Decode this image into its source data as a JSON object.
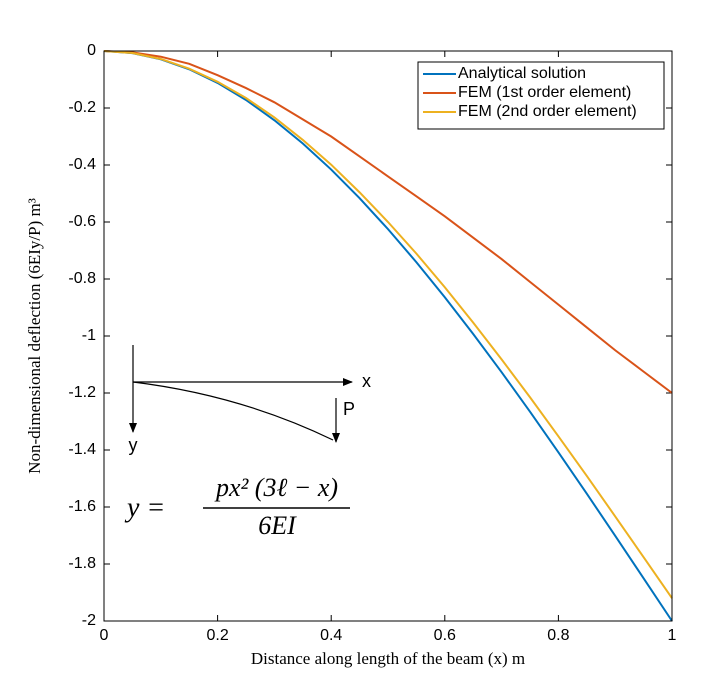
{
  "chart_data": {
    "type": "line",
    "xlabel": "Distance along length of the beam (x)  m",
    "ylabel": "Non-dimensional deflection (6EIy/P)  m³",
    "x": [
      0,
      0.05,
      0.1,
      0.15,
      0.2,
      0.25,
      0.3,
      0.35,
      0.4,
      0.45,
      0.5,
      0.55,
      0.6,
      0.65,
      0.7,
      0.75,
      0.8,
      0.85,
      0.9,
      0.95,
      1
    ],
    "series": [
      {
        "name": "Analytical solution",
        "color": "#0072bd",
        "values": [
          0,
          -0.0074,
          -0.029,
          -0.0641,
          -0.112,
          -0.1719,
          -0.243,
          -0.3246,
          -0.416,
          -0.5164,
          -0.625,
          -0.7411,
          -0.864,
          -0.9929,
          -1.127,
          -1.2656,
          -1.408,
          -1.5534,
          -1.701,
          -1.8501,
          -2
        ]
      },
      {
        "name": "FEM (1st order element)",
        "color": "#d95319",
        "values": [
          0,
          -0.005,
          -0.02,
          -0.045,
          -0.085,
          -0.13,
          -0.18,
          -0.24,
          -0.3,
          -0.37,
          -0.44,
          -0.51,
          -0.58,
          -0.655,
          -0.73,
          -0.81,
          -0.89,
          -0.97,
          -1.05,
          -1.125,
          -1.2
        ]
      },
      {
        "name": "FEM (2nd order element)",
        "color": "#edb120",
        "values": [
          0,
          -0.007,
          -0.028,
          -0.062,
          -0.108,
          -0.165,
          -0.233,
          -0.312,
          -0.399,
          -0.496,
          -0.6,
          -0.711,
          -0.829,
          -0.953,
          -1.082,
          -1.215,
          -1.352,
          -1.491,
          -1.633,
          -1.776,
          -1.92
        ]
      }
    ],
    "xlim": [
      0,
      1
    ],
    "ylim": [
      -2,
      0
    ],
    "xticks": [
      0,
      0.2,
      0.4,
      0.6,
      0.8,
      1
    ],
    "yticks": [
      -2,
      -1.8,
      -1.6,
      -1.4,
      -1.2,
      -1,
      -0.8,
      -0.6,
      -0.4,
      -0.2,
      0
    ],
    "grid": false,
    "legend": "upper right",
    "annotations": {
      "axis_x": "x",
      "axis_y": "y",
      "load": "P",
      "formula_lhs": "y =",
      "formula_num": "px² (3ℓ − x)",
      "formula_den": "6EI"
    }
  }
}
